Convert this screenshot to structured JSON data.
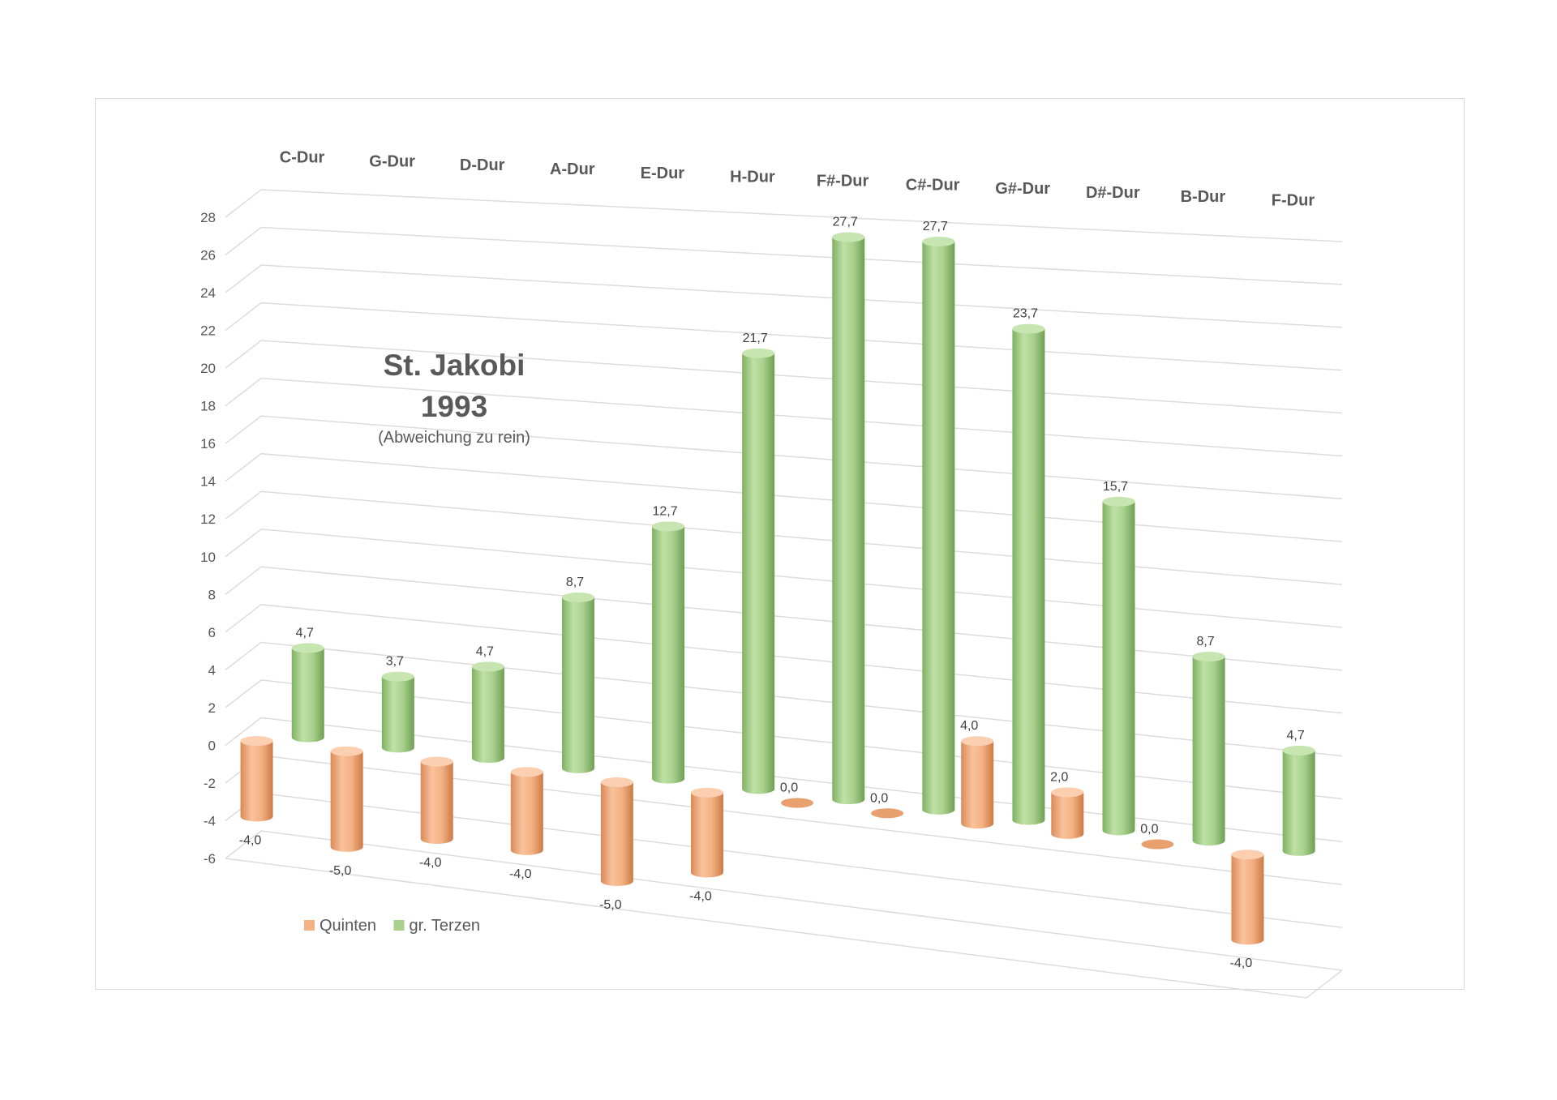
{
  "chart_data": {
    "type": "bar",
    "style": "3d-cylinder",
    "title": "St. Jakobi",
    "subtitle": "1993",
    "note": "(Abweichung zu rein)",
    "categories": [
      "C-Dur",
      "G-Dur",
      "D-Dur",
      "A-Dur",
      "E-Dur",
      "H-Dur",
      "F#-Dur",
      "C#-Dur",
      "G#-Dur",
      "D#-Dur",
      "B-Dur",
      "F-Dur"
    ],
    "series": [
      {
        "name": "Quinten",
        "color": "#f4b183",
        "values": [
          -4.0,
          -5.0,
          -4.0,
          -4.0,
          -5.0,
          -4.0,
          0.0,
          0.0,
          4.0,
          2.0,
          0.0,
          -4.0
        ],
        "labels": [
          "-4,0",
          "-5,0",
          "-4,0",
          "-4,0",
          "-5,0",
          "-4,0",
          "0,0",
          "0,0",
          "4,0",
          "2,0",
          "0,0",
          "-4,0"
        ]
      },
      {
        "name": "gr. Terzen",
        "color": "#a9d18e",
        "values": [
          4.7,
          3.7,
          4.7,
          8.7,
          12.7,
          21.7,
          27.7,
          27.7,
          23.7,
          15.7,
          8.7,
          4.7
        ],
        "labels": [
          "4,7",
          "3,7",
          "4,7",
          "8,7",
          "12,7",
          "21,7",
          "27,7",
          "27,7",
          "23,7",
          "15,7",
          "8,7",
          "4,7"
        ]
      }
    ],
    "yticks": [
      "28",
      "26",
      "24",
      "22",
      "20",
      "18",
      "16",
      "14",
      "12",
      "10",
      "8",
      "6",
      "4",
      "2",
      "0",
      "-2",
      "-4",
      "-6"
    ],
    "ylim": [
      -6,
      28
    ],
    "ystep": 2,
    "grid": true,
    "legend_position": "bottom-left"
  }
}
